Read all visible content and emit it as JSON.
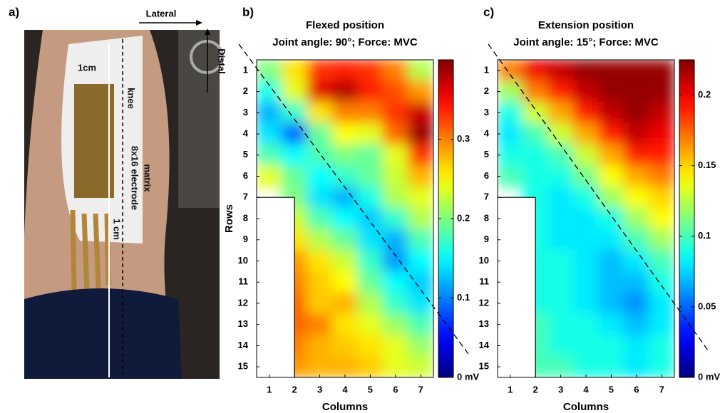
{
  "photo": {
    "panel_label": "a)",
    "lateral": "Lateral",
    "distal": "Distal",
    "spacing_top": "1cm",
    "knee": "knee",
    "matrix_line1": "8x16 electrode",
    "matrix_line2": "matrix",
    "spacing_bottom": "1 cm"
  },
  "chart_data": [
    {
      "type": "heatmap",
      "panel_label": "b)",
      "title": "Flexed position",
      "subtitle": "Joint angle: 90°; Force: MVC",
      "x_label": "Columns",
      "y_label": "Rows",
      "colormap": "jet",
      "xlim": [
        0.5,
        7.5
      ],
      "ylim": [
        15.5,
        0.5
      ],
      "xticks": [
        1,
        2,
        3,
        4,
        5,
        6,
        7
      ],
      "yticks": [
        1,
        2,
        3,
        4,
        5,
        6,
        7,
        8,
        9,
        10,
        11,
        12,
        13,
        14,
        15
      ],
      "zlim": [
        0,
        0.4
      ],
      "zticks": [
        {
          "value": 0,
          "label": "0 mV"
        },
        0.1,
        0.2,
        0.3
      ],
      "values": [
        [
          0.2,
          0.26,
          0.33,
          0.34,
          0.33,
          0.3,
          0.22
        ],
        [
          0.16,
          0.24,
          0.36,
          0.38,
          0.34,
          0.32,
          0.29
        ],
        [
          0.12,
          0.17,
          0.26,
          0.3,
          0.3,
          0.33,
          0.37
        ],
        [
          0.14,
          0.09,
          0.19,
          0.25,
          0.24,
          0.31,
          0.39
        ],
        [
          0.18,
          0.15,
          0.18,
          0.2,
          0.19,
          0.24,
          0.33
        ],
        [
          0.24,
          0.19,
          0.15,
          0.17,
          0.19,
          0.23,
          0.28
        ],
        [
          null,
          0.2,
          0.14,
          0.12,
          0.16,
          0.22,
          0.24
        ],
        [
          null,
          0.23,
          0.18,
          0.15,
          0.13,
          0.17,
          0.22
        ],
        [
          null,
          0.26,
          0.22,
          0.19,
          0.14,
          0.12,
          0.18
        ],
        [
          null,
          0.29,
          0.26,
          0.23,
          0.17,
          0.11,
          0.15
        ],
        [
          null,
          0.3,
          0.27,
          0.25,
          0.19,
          0.15,
          0.13
        ],
        [
          null,
          0.31,
          0.27,
          0.28,
          0.22,
          0.17,
          0.14
        ],
        [
          null,
          0.31,
          0.3,
          0.26,
          0.24,
          0.21,
          0.18
        ],
        [
          null,
          0.3,
          0.28,
          0.27,
          0.26,
          0.24,
          0.21
        ],
        [
          null,
          0.29,
          0.28,
          0.28,
          0.27,
          0.24,
          0.23
        ]
      ]
    },
    {
      "type": "heatmap",
      "panel_label": "c)",
      "title": "Extension position",
      "subtitle": "Joint angle: 15°; Force: MVC",
      "x_label": "Columns",
      "colormap": "jet",
      "xlim": [
        0.5,
        7.5
      ],
      "ylim": [
        15.5,
        0.5
      ],
      "xticks": [
        1,
        2,
        3,
        4,
        5,
        6,
        7
      ],
      "yticks": [
        1,
        2,
        3,
        4,
        5,
        6,
        7,
        8,
        9,
        10,
        11,
        12,
        13,
        14,
        15
      ],
      "zlim": [
        0,
        0.225
      ],
      "zticks": [
        {
          "value": 0,
          "label": "0 mV"
        },
        0.05,
        0.1,
        0.15,
        0.2
      ],
      "values": [
        [
          0.17,
          0.2,
          0.21,
          0.22,
          0.22,
          0.22,
          0.22
        ],
        [
          0.12,
          0.17,
          0.19,
          0.21,
          0.22,
          0.22,
          0.22
        ],
        [
          0.09,
          0.13,
          0.16,
          0.19,
          0.21,
          0.22,
          0.21
        ],
        [
          0.08,
          0.1,
          0.13,
          0.16,
          0.19,
          0.21,
          0.2
        ],
        [
          0.09,
          0.09,
          0.1,
          0.13,
          0.16,
          0.19,
          0.19
        ],
        [
          0.1,
          0.09,
          0.09,
          0.11,
          0.14,
          0.16,
          0.17
        ],
        [
          null,
          0.09,
          0.08,
          0.09,
          0.12,
          0.14,
          0.15
        ],
        [
          null,
          0.09,
          0.08,
          0.08,
          0.09,
          0.12,
          0.14
        ],
        [
          null,
          0.09,
          0.08,
          0.08,
          0.08,
          0.1,
          0.12
        ],
        [
          null,
          0.09,
          0.09,
          0.08,
          0.07,
          0.08,
          0.1
        ],
        [
          null,
          0.09,
          0.09,
          0.08,
          0.07,
          0.07,
          0.09
        ],
        [
          null,
          0.09,
          0.09,
          0.08,
          0.07,
          0.06,
          0.08
        ],
        [
          null,
          0.1,
          0.09,
          0.09,
          0.08,
          0.07,
          0.08
        ],
        [
          null,
          0.1,
          0.09,
          0.09,
          0.09,
          0.08,
          0.09
        ],
        [
          null,
          0.1,
          0.1,
          0.09,
          0.09,
          0.08,
          0.09
        ]
      ]
    }
  ]
}
